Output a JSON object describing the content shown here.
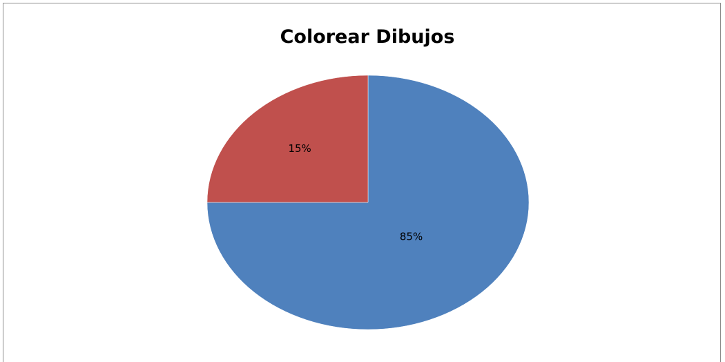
{
  "chart_data": {
    "type": "pie",
    "title": "Colorear Dibujos",
    "slices": [
      {
        "label": "85%",
        "value": 85,
        "color": "#4f81bd"
      },
      {
        "label": "15%",
        "value": 15,
        "color": "#c0504d"
      }
    ],
    "legend": "none"
  }
}
